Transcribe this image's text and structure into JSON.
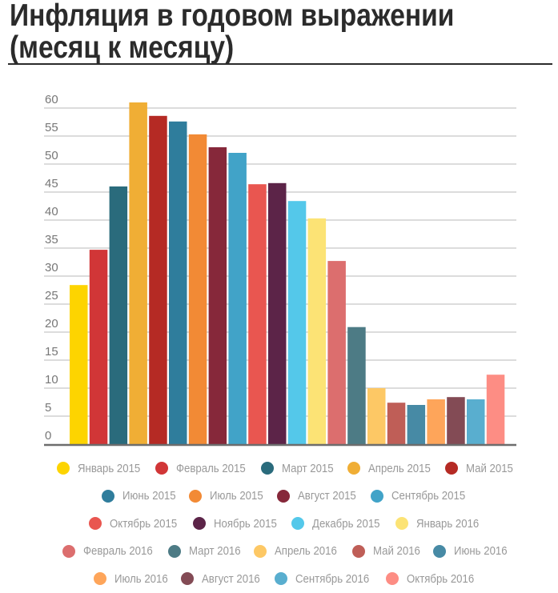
{
  "title": {
    "line1": "Инфляция в годовом выражении",
    "line2": "(месяц к месяцу)"
  },
  "chart_data": {
    "type": "bar",
    "title": "Инфляция в годовом выражении (месяц к месяцу)",
    "xlabel": "",
    "ylabel": "",
    "ylim": [
      0,
      60
    ],
    "yticks": [
      0,
      5,
      10,
      15,
      20,
      25,
      30,
      35,
      40,
      45,
      50,
      55,
      60
    ],
    "grid": true,
    "legend_position": "bottom",
    "categories": [
      "Январь 2015",
      "Февраль 2015",
      "Март 2015",
      "Апрель 2015",
      "Май 2015",
      "Июнь 2015",
      "Июль 2015",
      "Август 2015",
      "Сентябрь 2015",
      "Октябрь 2015",
      "Ноябрь 2015",
      "Декабрь 2015",
      "Январь 2016",
      "Февраль 2016",
      "Март 2016",
      "Апрель 2016",
      "Май 2016",
      "Июнь 2016",
      "Июль 2016",
      "Август 2016",
      "Сентябрь 2016",
      "Октябрь 2016"
    ],
    "values": [
      28.4,
      34.7,
      46.0,
      61.0,
      58.6,
      57.6,
      55.3,
      53.0,
      52.0,
      46.4,
      46.6,
      43.4,
      40.3,
      32.7,
      20.9,
      10.0,
      7.4,
      7.0,
      8.0,
      8.4,
      8.0,
      12.4
    ],
    "colors": [
      "#fdd400",
      "#d13637",
      "#2a6b7c",
      "#f0ae35",
      "#b52a24",
      "#2f7d9c",
      "#f28a35",
      "#86283a",
      "#41a3c8",
      "#e95650",
      "#5c2448",
      "#54c8ea",
      "#fce375",
      "#dc6e6e",
      "#4d7b85",
      "#fdc865",
      "#bf5e57",
      "#478aa5",
      "#fea55a",
      "#834b55",
      "#59aecf",
      "#fd8d84"
    ]
  }
}
